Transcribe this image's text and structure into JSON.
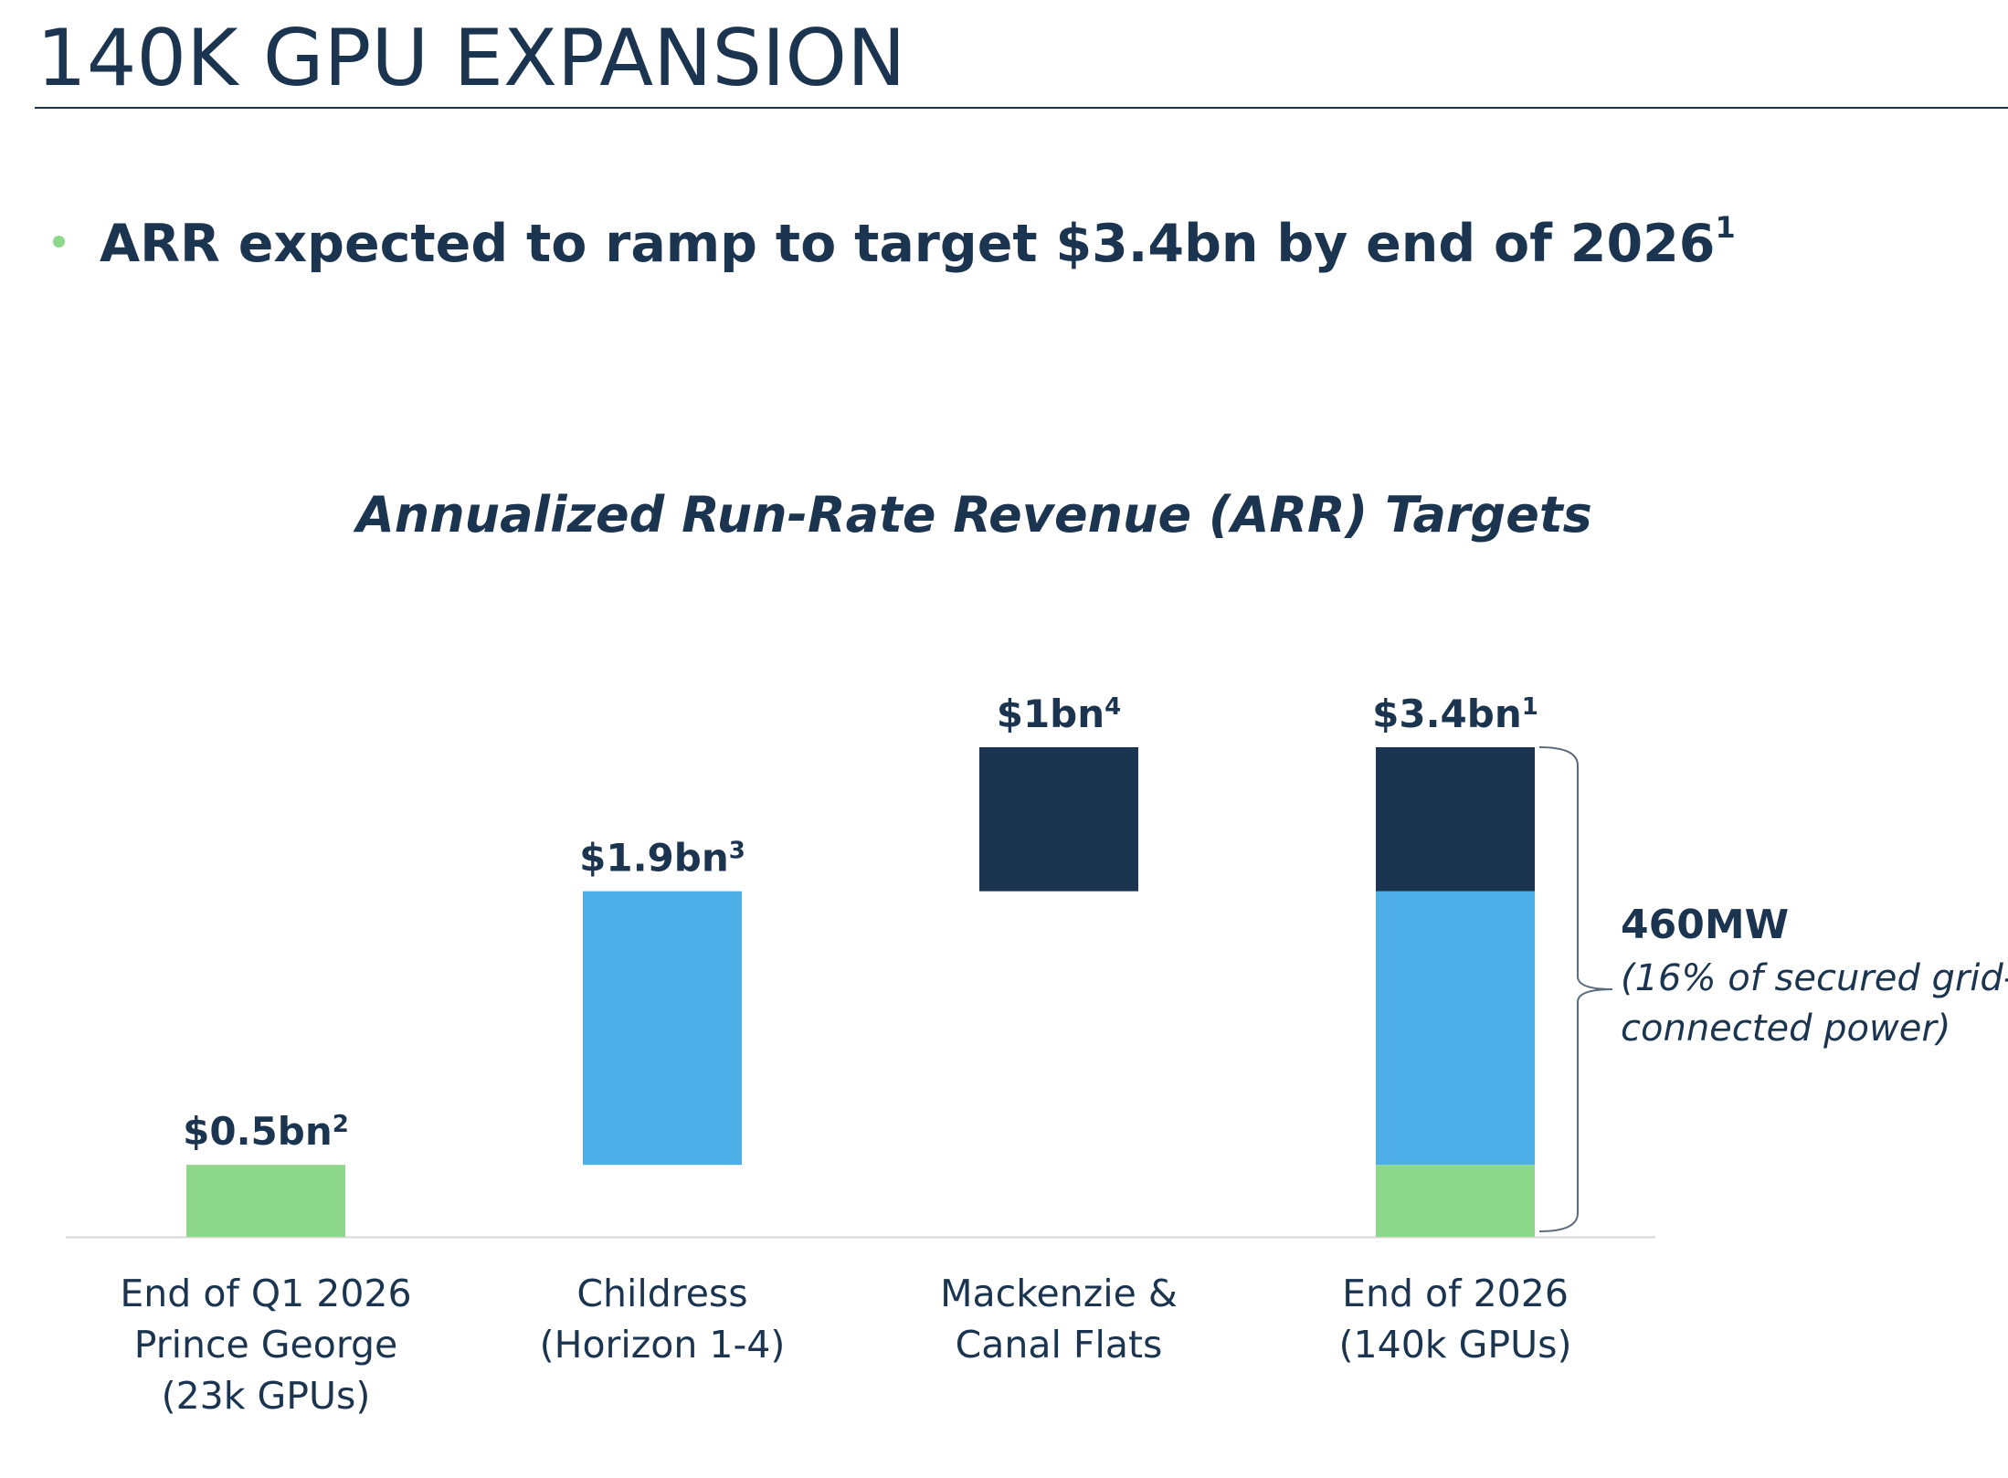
{
  "header": {
    "title": "140K GPU EXPANSION"
  },
  "bullet": {
    "text": "ARR expected to ramp to target $3.4bn by end of 2026",
    "footnote": "1"
  },
  "chart_data": {
    "type": "bar",
    "title": "Annualized Run-Rate Revenue (ARR) Targets",
    "categories": [
      [
        "End of Q1 2026",
        "Prince George",
        "(23k GPUs)"
      ],
      [
        "Childress",
        "(Horizon 1-4)"
      ],
      [
        "Mackenzie &",
        "Canal Flats"
      ],
      [
        "End of 2026",
        "(140k GPUs)"
      ]
    ],
    "bars": [
      {
        "base": 0,
        "value": 0.5,
        "color": "#8dd88b",
        "label": "$0.5bn",
        "footnote": "2"
      },
      {
        "base": 0.5,
        "value": 1.9,
        "color": "#4eaee8",
        "label": "$1.9bn",
        "footnote": "3"
      },
      {
        "base": 2.4,
        "value": 1.0,
        "color": "#1b3450",
        "label": "$1bn",
        "footnote": "4"
      },
      {
        "label": "$3.4bn",
        "footnote": "1",
        "segments": [
          {
            "value": 0.5,
            "color": "#8dd88b"
          },
          {
            "value": 1.9,
            "color": "#4eaee8"
          },
          {
            "value": 1.0,
            "color": "#1b3450"
          }
        ]
      }
    ],
    "ylim": [
      0,
      3.4
    ],
    "grid": false,
    "annotation": {
      "title": "460MW",
      "lines": [
        "(16% of secured grid-",
        "connected power)"
      ]
    },
    "colors": {
      "green": "#8dd88b",
      "blue": "#4eaee8",
      "navy": "#1b3450",
      "axis": "#d7d7d7",
      "bracket": "#5a6b7c"
    }
  }
}
